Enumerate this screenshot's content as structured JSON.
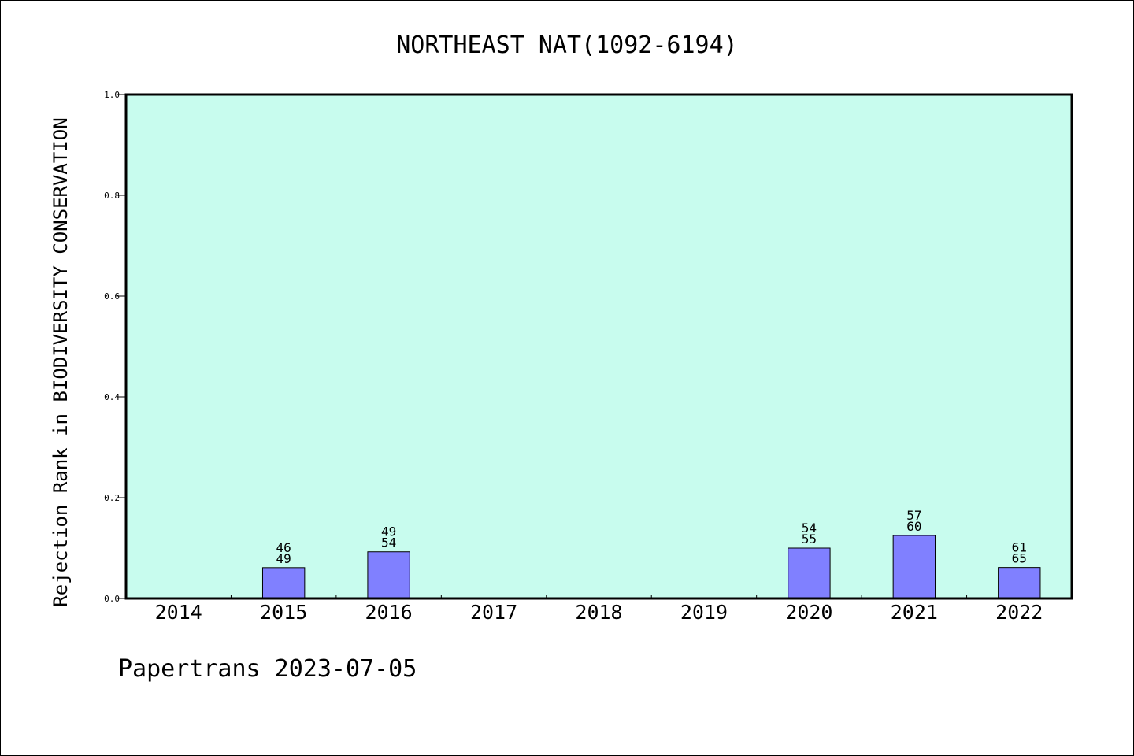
{
  "chart_data": {
    "type": "bar",
    "title": "NORTHEAST NAT(1092-6194)",
    "xlabel": "",
    "ylabel": "Rejection Rank in BIODIVERSITY CONSERVATION",
    "categories": [
      "2014",
      "2015",
      "2016",
      "2017",
      "2018",
      "2019",
      "2020",
      "2021",
      "2022"
    ],
    "values": [
      0,
      0.0612,
      0.0926,
      0,
      0,
      0,
      0.1,
      0.125,
      0.0615
    ],
    "bar_labels": [
      null,
      [
        "46",
        "49"
      ],
      [
        "49",
        "54"
      ],
      null,
      null,
      null,
      [
        "54",
        "55"
      ],
      [
        "57",
        "60"
      ],
      [
        "61",
        "65"
      ]
    ],
    "ylim": [
      0,
      1.0
    ],
    "yticks": [
      "0.0",
      "0.2",
      "0.4",
      "0.6",
      "0.8",
      "1.0"
    ],
    "grid": false,
    "colors": {
      "plot_background": "#c8fcee",
      "bar_fill": "#8080ff",
      "bar_edge": "#000000"
    }
  },
  "footer": {
    "text": "Papertrans 2023-07-05"
  }
}
